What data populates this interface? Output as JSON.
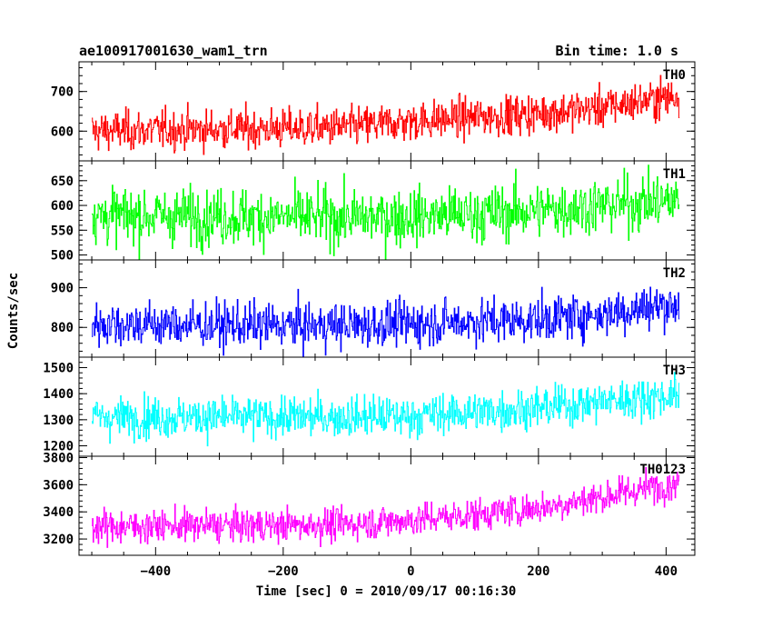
{
  "chart_data": {
    "type": "line",
    "title_left": "ae100917001630_wam1_trn",
    "title_right": "Bin time: 1.0 s",
    "xlabel": "Time [sec] 0 = 2010/09/17 00:16:30",
    "ylabel": "Counts/sec",
    "xlim": [
      -520,
      445
    ],
    "xticks": [
      -400,
      -200,
      0,
      200,
      400
    ],
    "x_range": [
      -500,
      420
    ],
    "bin_time": 1.0,
    "panels": [
      {
        "label": "TH0",
        "color": "#ff0000",
        "ylim": [
          525,
          775
        ],
        "yticks": [
          600,
          700
        ],
        "trend_x": [
          -500,
          -400,
          -300,
          -200,
          -100,
          0,
          100,
          200,
          300,
          420
        ],
        "trend_y": [
          600,
          603,
          605,
          607,
          610,
          625,
          635,
          645,
          660,
          690
        ],
        "noise": 35
      },
      {
        "label": "TH1",
        "color": "#00ff00",
        "ylim": [
          490,
          690
        ],
        "yticks": [
          500,
          550,
          600,
          650
        ],
        "trend_x": [
          -500,
          -300,
          -100,
          0,
          100,
          200,
          300,
          420
        ],
        "trend_y": [
          580,
          578,
          575,
          578,
          582,
          590,
          600,
          610
        ],
        "noise": 40
      },
      {
        "label": "TH2",
        "color": "#0000ff",
        "ylim": [
          725,
          970
        ],
        "yticks": [
          800,
          900
        ],
        "trend_x": [
          -500,
          -300,
          -100,
          0,
          100,
          200,
          300,
          420
        ],
        "trend_y": [
          810,
          805,
          805,
          810,
          815,
          820,
          835,
          860
        ],
        "noise": 40
      },
      {
        "label": "TH3",
        "color": "#00ffff",
        "ylim": [
          1160,
          1540
        ],
        "yticks": [
          1200,
          1300,
          1400,
          1500
        ],
        "trend_x": [
          -500,
          -300,
          -100,
          0,
          100,
          200,
          300,
          420
        ],
        "trend_y": [
          1310,
          1310,
          1310,
          1315,
          1330,
          1345,
          1370,
          1395
        ],
        "noise": 55
      },
      {
        "label": "TH0123",
        "color": "#ff00ff",
        "ylim": [
          3080,
          3810
        ],
        "yticks": [
          3200,
          3400,
          3600,
          3800
        ],
        "trend_x": [
          -500,
          -400,
          -300,
          -200,
          -100,
          0,
          100,
          200,
          300,
          420
        ],
        "trend_y": [
          3290,
          3295,
          3300,
          3300,
          3310,
          3340,
          3380,
          3430,
          3510,
          3620
        ],
        "noise": 85
      }
    ]
  }
}
